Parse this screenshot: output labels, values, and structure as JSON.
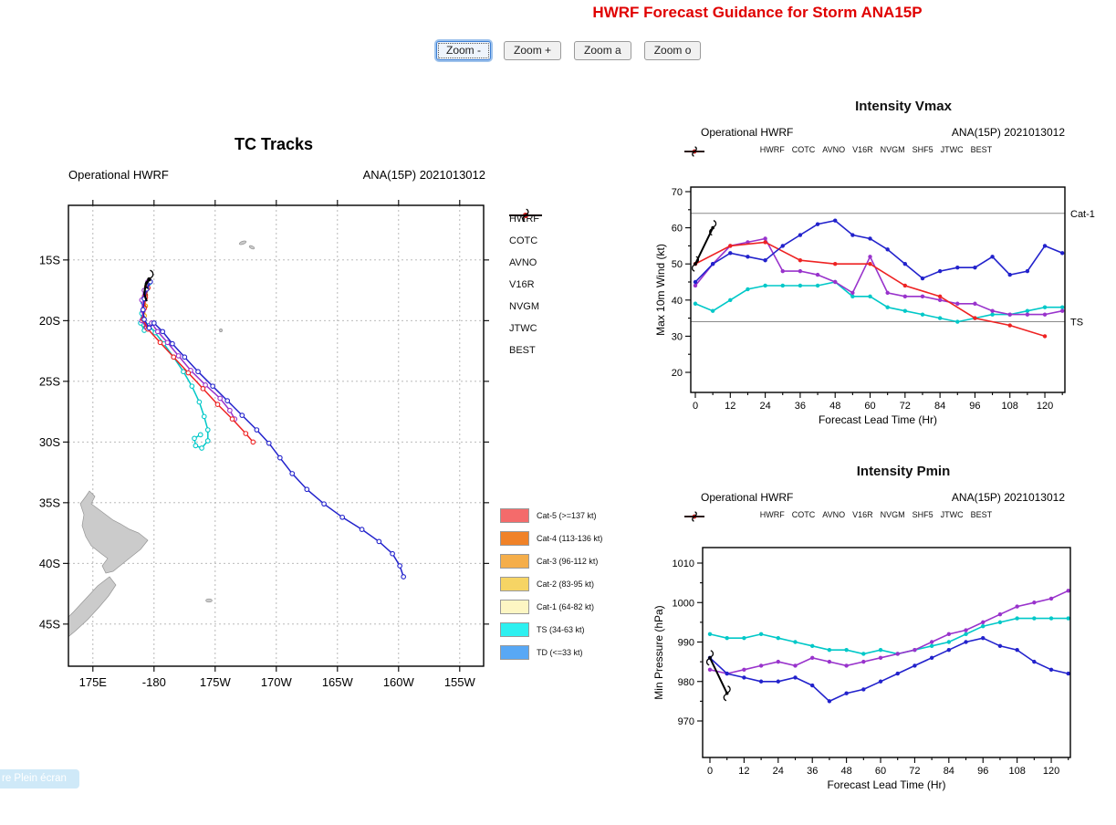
{
  "header": {
    "title": "HWRF Forecast Guidance for Storm ANA15P",
    "title_color": "#e00000"
  },
  "toolbar": {
    "buttons": [
      {
        "label": "Zoom -",
        "focused": true
      },
      {
        "label": "Zoom +",
        "focused": false
      },
      {
        "label": "Zoom a",
        "focused": false
      },
      {
        "label": "Zoom o",
        "focused": false
      }
    ]
  },
  "overlay": {
    "text": "re Plein écran"
  },
  "chart_data": [
    {
      "type": "track_map",
      "title": "TC Tracks",
      "subtitle_left": "Operational HWRF",
      "subtitle_right": "ANA(15P) 2021013012",
      "lon_ticks": [
        {
          "deg": 175,
          "label": "175E"
        },
        {
          "deg": 180,
          "label": "-180"
        },
        {
          "deg": 185,
          "label": "175W"
        },
        {
          "deg": 190,
          "label": "170W"
        },
        {
          "deg": 195,
          "label": "165W"
        },
        {
          "deg": 200,
          "label": "160W"
        },
        {
          "deg": 205,
          "label": "155W"
        }
      ],
      "lat_ticks": [
        {
          "deg": 15,
          "label": "15S"
        },
        {
          "deg": 20,
          "label": "20S"
        },
        {
          "deg": 25,
          "label": "25S"
        },
        {
          "deg": 30,
          "label": "30S"
        },
        {
          "deg": 35,
          "label": "35S"
        },
        {
          "deg": 40,
          "label": "40S"
        },
        {
          "deg": 45,
          "label": "45S"
        }
      ],
      "legend": [
        {
          "label": "HWRF",
          "color": "#9933cc"
        },
        {
          "label": "COTC",
          "color": "#f0a800"
        },
        {
          "label": "AVNO",
          "color": "#2222cc"
        },
        {
          "label": "V16R",
          "color": "#a04000"
        },
        {
          "label": "NVGM",
          "color": "#00c8c8"
        },
        {
          "label": "JTWC",
          "color": "#ee2222"
        },
        {
          "label": "BEST",
          "color": "#000000",
          "marker": "cyclone"
        }
      ],
      "category_legend": [
        {
          "label": "Cat-5 (>=137 kt)",
          "color": "#f46b6b"
        },
        {
          "label": "Cat-4 (113-136 kt)",
          "color": "#f08228"
        },
        {
          "label": "Cat-3 (96-112 kt)",
          "color": "#f5ae4a"
        },
        {
          "label": "Cat-2 (83-95 kt)",
          "color": "#f6d464"
        },
        {
          "label": "Cat-1 (64-82 kt)",
          "color": "#fdf6c3"
        },
        {
          "label": "TS (34-63 kt)",
          "color": "#2ef0f0"
        },
        {
          "label": "TD (<=33 kt)",
          "color": "#58a8f5"
        }
      ],
      "tracks": [
        {
          "name": "COTC",
          "color": "#f0a800",
          "points": [
            [
              17.2,
              179.4
            ],
            [
              18.0,
              179.2
            ],
            [
              18.8,
              179.3
            ],
            [
              19.6,
              179.2
            ]
          ]
        },
        {
          "name": "V16R",
          "color": "#a04000",
          "points": [
            [
              17.0,
              179.5
            ],
            [
              17.9,
              179.3
            ],
            [
              18.9,
              179.2
            ],
            [
              19.8,
              179.1
            ],
            [
              20.6,
              179.3
            ]
          ]
        },
        {
          "name": "NVGM",
          "color": "#00c8c8",
          "points": [
            [
              16.9,
              179.6
            ],
            [
              17.6,
              179.3
            ],
            [
              18.5,
              179.1
            ],
            [
              19.4,
              179.0
            ],
            [
              20.2,
              178.9
            ],
            [
              20.8,
              179.2
            ],
            [
              20.4,
              179.6
            ],
            [
              21.0,
              180.1
            ],
            [
              21.9,
              180.8
            ],
            [
              23.0,
              181.6
            ],
            [
              24.2,
              182.4
            ],
            [
              25.4,
              183.1
            ],
            [
              26.7,
              183.7
            ],
            [
              27.9,
              184.1
            ],
            [
              29.0,
              184.4
            ],
            [
              29.9,
              184.4
            ],
            [
              30.5,
              183.9
            ],
            [
              30.3,
              183.4
            ],
            [
              29.7,
              183.3
            ],
            [
              29.4,
              183.8
            ]
          ]
        },
        {
          "name": "HWRF",
          "color": "#9933cc",
          "points": [
            [
              16.8,
              179.5
            ],
            [
              17.5,
              179.2
            ],
            [
              18.3,
              179.0
            ],
            [
              19.2,
              179.1
            ],
            [
              20.0,
              179.0
            ],
            [
              20.6,
              179.4
            ],
            [
              20.2,
              179.8
            ],
            [
              20.9,
              180.3
            ],
            [
              21.8,
              181.1
            ],
            [
              22.9,
              182.0
            ],
            [
              24.1,
              183.0
            ],
            [
              25.3,
              184.2
            ],
            [
              26.4,
              185.4
            ],
            [
              27.4,
              186.2
            ],
            [
              28.1,
              186.6
            ]
          ]
        },
        {
          "name": "JTWC",
          "color": "#ee2222",
          "points": [
            [
              17.3,
              179.5
            ],
            [
              18.1,
              179.3
            ],
            [
              19.0,
              179.2
            ],
            [
              19.9,
              179.1
            ],
            [
              20.7,
              179.5
            ],
            [
              21.8,
              180.5
            ],
            [
              23.0,
              181.6
            ],
            [
              24.3,
              182.8
            ],
            [
              25.6,
              184.0
            ],
            [
              26.9,
              185.2
            ],
            [
              28.1,
              186.4
            ],
            [
              29.3,
              187.5
            ],
            [
              30.0,
              188.1
            ]
          ]
        },
        {
          "name": "AVNO",
          "color": "#2222cc",
          "points": [
            [
              16.8,
              179.7
            ],
            [
              17.4,
              179.4
            ],
            [
              18.2,
              179.2
            ],
            [
              19.1,
              179.1
            ],
            [
              19.9,
              179.2
            ],
            [
              20.6,
              179.6
            ],
            [
              20.2,
              180.0
            ],
            [
              20.9,
              180.7
            ],
            [
              21.9,
              181.5
            ],
            [
              23.0,
              182.5
            ],
            [
              24.2,
              183.6
            ],
            [
              25.4,
              184.8
            ],
            [
              26.6,
              186.0
            ],
            [
              27.8,
              187.2
            ],
            [
              29.0,
              188.4
            ],
            [
              30.1,
              189.4
            ],
            [
              31.3,
              190.3
            ],
            [
              32.6,
              191.3
            ],
            [
              33.9,
              192.5
            ],
            [
              35.1,
              193.9
            ],
            [
              36.2,
              195.4
            ],
            [
              37.2,
              197.0
            ],
            [
              38.2,
              198.4
            ],
            [
              39.2,
              199.5
            ],
            [
              40.2,
              200.1
            ],
            [
              41.1,
              200.4
            ]
          ]
        },
        {
          "name": "BEST",
          "color": "#000000",
          "marker": "cyclone",
          "points": [
            [
              16.6,
              179.6
            ],
            [
              17.1,
              179.3
            ],
            [
              17.8,
              179.2
            ],
            [
              18.4,
              179.4
            ]
          ]
        }
      ]
    },
    {
      "type": "line",
      "id": "vmax",
      "title": "Intensity Vmax",
      "subtitle_left": "Operational HWRF",
      "subtitle_right": "ANA(15P) 2021013012",
      "xlabel": "Forecast Lead Time (Hr)",
      "ylabel": "Max 10m Wind (kt)",
      "x_ticks": [
        0,
        12,
        24,
        36,
        48,
        60,
        72,
        84,
        96,
        108,
        120
      ],
      "y_ticks": [
        20,
        30,
        40,
        50,
        60,
        70
      ],
      "ylim": [
        14,
        71
      ],
      "ref_lines": [
        {
          "value": 64,
          "label": "Cat-1"
        },
        {
          "value": 34,
          "label": "TS"
        }
      ],
      "legend": [
        {
          "label": "HWRF",
          "color": "#9933cc"
        },
        {
          "label": "COTC",
          "color": "#f0a800"
        },
        {
          "label": "AVNO",
          "color": "#2222cc"
        },
        {
          "label": "V16R",
          "color": "#a04000"
        },
        {
          "label": "NVGM",
          "color": "#00c8c8"
        },
        {
          "label": "SHF5",
          "color": "#909090"
        },
        {
          "label": "JTWC",
          "color": "#ee2222"
        },
        {
          "label": "BEST",
          "color": "#000000",
          "marker": "cyclone"
        }
      ],
      "series": [
        {
          "name": "NVGM",
          "color": "#00c8c8",
          "x": [
            0,
            6,
            12,
            18,
            24,
            30,
            36,
            42,
            48,
            54,
            60,
            66,
            72,
            78,
            84,
            90,
            96,
            102,
            108,
            114,
            120,
            126
          ],
          "values": [
            39,
            37,
            40,
            43,
            44,
            44,
            44,
            44,
            45,
            41,
            41,
            38,
            37,
            36,
            35,
            34,
            35,
            36,
            36,
            37,
            38,
            38
          ]
        },
        {
          "name": "HWRF",
          "color": "#9933cc",
          "x": [
            0,
            6,
            12,
            18,
            24,
            30,
            36,
            42,
            48,
            54,
            60,
            66,
            72,
            78,
            84,
            90,
            96,
            102,
            108,
            114,
            120,
            126
          ],
          "values": [
            44,
            50,
            55,
            56,
            57,
            48,
            48,
            47,
            45,
            42,
            52,
            42,
            41,
            41,
            40,
            39,
            39,
            37,
            36,
            36,
            36,
            37
          ]
        },
        {
          "name": "JTWC",
          "color": "#ee2222",
          "x": [
            0,
            12,
            24,
            36,
            48,
            60,
            72,
            84,
            96,
            108,
            120
          ],
          "values": [
            50,
            55,
            56,
            51,
            50,
            50,
            44,
            41,
            35,
            33,
            30
          ]
        },
        {
          "name": "AVNO",
          "color": "#2222cc",
          "x": [
            0,
            6,
            12,
            18,
            24,
            30,
            36,
            42,
            48,
            54,
            60,
            66,
            72,
            78,
            84,
            90,
            96,
            102,
            108,
            114,
            120,
            126
          ],
          "values": [
            45,
            50,
            53,
            52,
            51,
            55,
            58,
            61,
            62,
            58,
            57,
            54,
            50,
            46,
            48,
            49,
            49,
            52,
            47,
            48,
            55,
            53
          ]
        },
        {
          "name": "BEST",
          "color": "#000000",
          "marker": "cyclone",
          "x": [
            0,
            6
          ],
          "values": [
            50,
            60
          ]
        }
      ]
    },
    {
      "type": "line",
      "id": "pmin",
      "title": "Intensity Pmin",
      "subtitle_left": "Operational HWRF",
      "subtitle_right": "ANA(15P) 2021013012",
      "xlabel": "Forecast Lead Time (Hr)",
      "ylabel": "Min Pressure (hPa)",
      "x_ticks": [
        0,
        12,
        24,
        36,
        48,
        60,
        72,
        84,
        96,
        108,
        120
      ],
      "y_ticks": [
        970,
        980,
        990,
        1000,
        1010
      ],
      "ylim": [
        961,
        1014
      ],
      "ref_lines": [],
      "legend": [
        {
          "label": "HWRF",
          "color": "#9933cc"
        },
        {
          "label": "COTC",
          "color": "#f0a800"
        },
        {
          "label": "AVNO",
          "color": "#2222cc"
        },
        {
          "label": "V16R",
          "color": "#a04000"
        },
        {
          "label": "NVGM",
          "color": "#00c8c8"
        },
        {
          "label": "SHF5",
          "color": "#909090"
        },
        {
          "label": "JTWC",
          "color": "#ee2222"
        },
        {
          "label": "BEST",
          "color": "#000000",
          "marker": "cyclone"
        }
      ],
      "series": [
        {
          "name": "NVGM",
          "color": "#00c8c8",
          "x": [
            0,
            6,
            12,
            18,
            24,
            30,
            36,
            42,
            48,
            54,
            60,
            66,
            72,
            78,
            84,
            90,
            96,
            102,
            108,
            114,
            120,
            126
          ],
          "values": [
            992,
            991,
            991,
            992,
            991,
            990,
            989,
            988,
            988,
            987,
            988,
            987,
            988,
            989,
            990,
            992,
            994,
            995,
            996,
            996,
            996,
            996
          ]
        },
        {
          "name": "HWRF",
          "color": "#9933cc",
          "x": [
            0,
            6,
            12,
            18,
            24,
            30,
            36,
            42,
            48,
            54,
            60,
            66,
            72,
            78,
            84,
            90,
            96,
            102,
            108,
            114,
            120,
            126
          ],
          "values": [
            983,
            982,
            983,
            984,
            985,
            984,
            986,
            985,
            984,
            985,
            986,
            987,
            988,
            990,
            992,
            993,
            995,
            997,
            999,
            1000,
            1001,
            1003
          ]
        },
        {
          "name": "AVNO",
          "color": "#2222cc",
          "x": [
            0,
            6,
            12,
            18,
            24,
            30,
            36,
            42,
            48,
            54,
            60,
            66,
            72,
            78,
            84,
            90,
            96,
            102,
            108,
            114,
            120,
            126
          ],
          "values": [
            986,
            982,
            981,
            980,
            980,
            981,
            979,
            975,
            977,
            978,
            980,
            982,
            984,
            986,
            988,
            990,
            991,
            989,
            988,
            985,
            983,
            982
          ]
        },
        {
          "name": "BEST",
          "color": "#000000",
          "marker": "cyclone",
          "x": [
            0,
            6
          ],
          "values": [
            986,
            977
          ]
        }
      ]
    }
  ]
}
